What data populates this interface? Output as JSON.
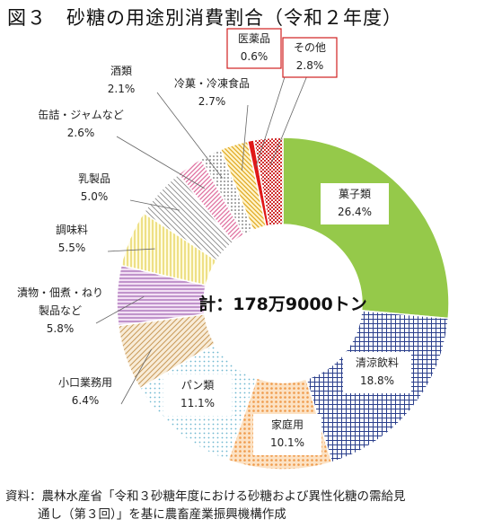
{
  "title": "図３　砂糖の用途別消費割合（令和２年度）",
  "source_prefix": "資料：",
  "source_line1": "農林水産省「令和３砂糖年度における砂糖および異性化糖の需給見",
  "source_line2": "通し（第３回）」を基に農畜産業振興機構作成",
  "chart_data": {
    "type": "pie",
    "donut": true,
    "center_label": "計：178万9000トン",
    "unit": "%",
    "slices": [
      {
        "name": "菓子類",
        "value": 26.4,
        "label": "26.4%",
        "color": "#8fc640",
        "pattern": "solid-green"
      },
      {
        "name": "清涼飲料",
        "value": 18.8,
        "label": "18.8%",
        "color": "#2b3f8c",
        "pattern": "grid-blue"
      },
      {
        "name": "家庭用",
        "value": 10.1,
        "label": "10.1%",
        "color": "#f5b06a",
        "pattern": "orange-dots"
      },
      {
        "name": "パン類",
        "value": 11.1,
        "label": "11.1%",
        "color": "#7fc4d8",
        "pattern": "light-blue-dots"
      },
      {
        "name": "小口業務用",
        "value": 6.4,
        "label": "6.4%",
        "color": "#d9b07a",
        "pattern": "tan-diagonal"
      },
      {
        "name": "漬物・佃煮・ねり製品など",
        "value": 5.8,
        "label": "5.8%",
        "color": "#b070b8",
        "pattern": "purple-hatch"
      },
      {
        "name": "調味料",
        "value": 5.5,
        "label": "5.5%",
        "color": "#e8d860",
        "pattern": "yellow-vertical"
      },
      {
        "name": "乳製品",
        "value": 5.0,
        "label": "5.0%",
        "color": "#8a8a8a",
        "pattern": "gray-diagonal"
      },
      {
        "name": "缶詰・ジャムなど",
        "value": 2.6,
        "label": "2.6%",
        "color": "#e070a0",
        "pattern": "pink-diagonal"
      },
      {
        "name": "酒類",
        "value": 2.1,
        "label": "2.1%",
        "color": "#555555",
        "pattern": "dark-dots"
      },
      {
        "name": "冷菓・冷凍食品",
        "value": 2.7,
        "label": "2.7%",
        "color": "#f0c030",
        "pattern": "gold-diagonal"
      },
      {
        "name": "医薬品",
        "value": 0.6,
        "label": "0.6%",
        "color": "#e02020",
        "pattern": "solid-red"
      },
      {
        "name": "その他",
        "value": 2.8,
        "label": "2.8%",
        "color": "#d03030",
        "pattern": "red-check"
      }
    ]
  }
}
